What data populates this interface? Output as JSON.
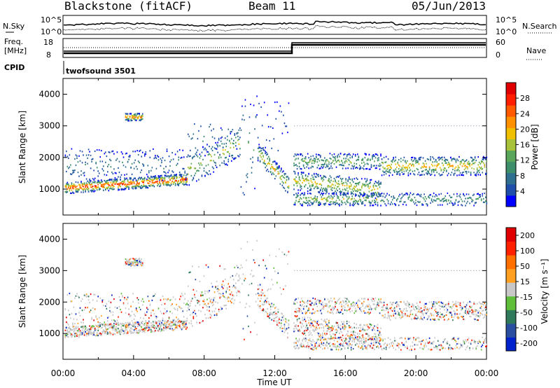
{
  "header": {
    "station": "Blackstone (fitACF)",
    "beam": "Beam 11",
    "date": "05/Jun/2013"
  },
  "params": {
    "nsky_label": "N.Sky",
    "nsearch_label": "N.Search",
    "freq_label_1": "Freq.",
    "freq_label_2": "[MHz]",
    "nave_label": "Nave",
    "cpid_label": "CPID",
    "cpid_value": "twofsound 3501",
    "noise_ticks": [
      "10^5",
      "10^0"
    ],
    "freq_ticks": [
      "18",
      "8"
    ],
    "nave_ticks": [
      "60",
      "0"
    ]
  },
  "chart_data": [
    {
      "type": "heatmap",
      "name": "power",
      "ylabel": "Slant Range [km]",
      "xlabel": "",
      "x_ticks": [
        "00:00",
        "04:00",
        "08:00",
        "12:00",
        "16:00",
        "20:00",
        "00:00"
      ],
      "y_ticks": [
        1000,
        2000,
        3000,
        4000
      ],
      "ylim": [
        180,
        4500
      ],
      "xlim_hours": [
        0,
        24
      ],
      "colorbar": {
        "label": "Power [dB]",
        "ticks": [
          4,
          8,
          12,
          16,
          20,
          24,
          28
        ],
        "colors": [
          "#0000ff",
          "#1f4faa",
          "#2f6f8f",
          "#3c8f6a",
          "#5aa65a",
          "#a8c23a",
          "#f0c000",
          "#ff9000",
          "#ff5a00",
          "#ff1e00",
          "#e00000"
        ]
      }
    },
    {
      "type": "heatmap",
      "name": "velocity",
      "ylabel": "Slant Range [km]",
      "xlabel": "Time UT",
      "x_ticks": [
        "00:00",
        "04:00",
        "08:00",
        "12:00",
        "16:00",
        "20:00",
        "00:00"
      ],
      "y_ticks": [
        1000,
        2000,
        3000,
        4000
      ],
      "ylim": [
        180,
        4500
      ],
      "xlim_hours": [
        0,
        24
      ],
      "colorbar": {
        "label": "Velocity [m s⁻¹]",
        "ticks": [
          "200",
          "100",
          "50",
          "15",
          "-15",
          "-50",
          "-100",
          "-200"
        ],
        "colors": [
          "#0022cc",
          "#2a4fa0",
          "#2f7a5a",
          "#5fbf3a",
          "#c8c8c8",
          "#ffa020",
          "#ff7000",
          "#ff2000",
          "#e00000"
        ]
      }
    }
  ]
}
